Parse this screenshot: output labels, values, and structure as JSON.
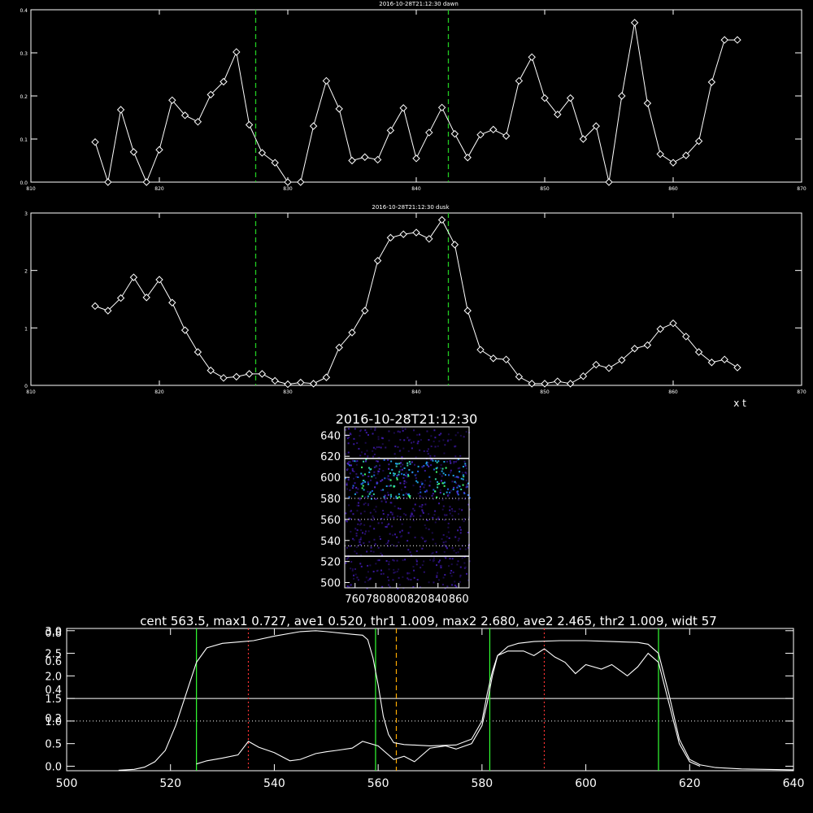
{
  "colors": {
    "background": "#000000",
    "foreground": "#ffffff",
    "marker_green": "#22cc22",
    "bright_green": "#33ff33",
    "red_dotted": "#ff3333",
    "orange_dashed": "#ffaa00"
  },
  "chart_data": [
    {
      "id": "dawn",
      "type": "line",
      "title": "2016-10-28T21:12:30 dawn",
      "xlim": [
        810,
        870
      ],
      "ylim": [
        0,
        0.4
      ],
      "xticks": [
        "810",
        "820",
        "830",
        "840",
        "850",
        "860",
        "870"
      ],
      "yticks": [
        "0.0",
        "0.1",
        "0.2",
        "0.3",
        "0.4"
      ],
      "marker": "diamond",
      "vlines_green_dashed": [
        827.5,
        842.5
      ],
      "x": [
        815,
        816,
        817,
        818,
        819,
        820,
        821,
        822,
        823,
        824,
        825,
        826,
        827,
        828,
        829,
        830,
        831,
        832,
        833,
        834,
        835,
        836,
        837,
        838,
        839,
        840,
        841,
        842,
        843,
        844,
        845,
        846,
        847,
        848,
        849,
        850,
        851,
        852,
        853,
        854,
        855,
        856,
        857,
        858,
        859,
        860,
        861,
        862,
        863,
        864,
        865
      ],
      "y": [
        0.093,
        0.0,
        0.168,
        0.07,
        0.0,
        0.075,
        0.19,
        0.155,
        0.14,
        0.203,
        0.233,
        0.302,
        0.133,
        0.068,
        0.045,
        0.0,
        -0.01,
        0.13,
        0.235,
        0.17,
        0.05,
        0.058,
        0.052,
        0.12,
        0.172,
        0.055,
        0.115,
        0.173,
        0.112,
        0.057,
        0.11,
        0.122,
        0.107,
        0.235,
        0.29,
        0.195,
        0.157,
        0.195,
        0.1,
        0.13,
        0.0,
        0.2,
        0.37,
        0.183,
        0.065,
        0.045,
        0.062,
        0.095,
        0.232,
        0.33,
        0.33
      ]
    },
    {
      "id": "dusk",
      "type": "line",
      "title": "2016-10-28T21:12:30 dusk",
      "xlim": [
        810,
        870
      ],
      "ylim": [
        0,
        3
      ],
      "xticks": [
        "810",
        "820",
        "830",
        "840",
        "850",
        "860",
        "870"
      ],
      "yticks": [
        "0",
        "1",
        "2",
        "3"
      ],
      "xlabel_extra": "x t",
      "marker": "diamond",
      "vlines_green_dashed": [
        827.5,
        842.5
      ],
      "x": [
        815,
        816,
        817,
        818,
        819,
        820,
        821,
        822,
        823,
        824,
        825,
        826,
        827,
        828,
        829,
        830,
        831,
        832,
        833,
        834,
        835,
        836,
        837,
        838,
        839,
        840,
        841,
        842,
        843,
        844,
        845,
        846,
        847,
        848,
        849,
        850,
        851,
        852,
        853,
        854,
        855,
        856,
        857,
        858,
        859,
        860,
        861,
        862,
        863,
        864,
        865
      ],
      "y": [
        1.38,
        1.3,
        1.52,
        1.88,
        1.53,
        1.84,
        1.44,
        0.96,
        0.58,
        0.26,
        0.13,
        0.15,
        0.2,
        0.2,
        0.08,
        0.02,
        0.05,
        0.03,
        0.14,
        0.66,
        0.92,
        1.3,
        2.17,
        2.57,
        2.63,
        2.66,
        2.55,
        2.88,
        2.45,
        1.3,
        0.62,
        0.47,
        0.45,
        0.15,
        0.03,
        0.03,
        0.07,
        0.03,
        0.16,
        0.36,
        0.3,
        0.44,
        0.64,
        0.7,
        0.98,
        1.08,
        0.85,
        0.58,
        0.4,
        0.45,
        0.31
      ]
    },
    {
      "id": "image",
      "type": "heatmap",
      "title": "2016-10-28T21:12:30",
      "xlim": [
        750,
        870
      ],
      "ylim": [
        495,
        648
      ],
      "xticks": [
        "760",
        "780",
        "800",
        "820",
        "840",
        "860"
      ],
      "yticks": [
        "500",
        "520",
        "540",
        "560",
        "580",
        "600",
        "620",
        "640"
      ],
      "hlines_solid": [
        618,
        525
      ],
      "hlines_dotted": [
        580,
        560,
        535
      ],
      "bright_column_centers": [
        768,
        775,
        795,
        800,
        812,
        838,
        845,
        862
      ]
    },
    {
      "id": "profile",
      "type": "line",
      "title": "cent 563.5, max1 0.727, ave1 0.520, thr1 1.009, max2 2.680, ave2 2.465, thr2 1.009, widt 57",
      "xlim": [
        500,
        640
      ],
      "xticks": [
        "500",
        "520",
        "540",
        "560",
        "580",
        "600",
        "620",
        "640"
      ],
      "ylim": [
        -0.1,
        3.05
      ],
      "yticks_left": [
        "0.0",
        "0.5",
        "1.0",
        "1.5",
        "2.0",
        "2.5",
        "3.0"
      ],
      "yticks_left_secondary": [
        "0.2",
        "0.4",
        "0.6",
        "0.8"
      ],
      "hline_solid": 1.5,
      "hline_dotted": 1.0,
      "vlines_green": [
        525,
        559.5,
        581.5,
        614
      ],
      "vlines_red_dotted": [
        535,
        592
      ],
      "vline_orange_dashed": 563.5,
      "series": [
        {
          "x": [
            510,
            513,
            515,
            517,
            519,
            521,
            523,
            525,
            527,
            530,
            533,
            536,
            540,
            545,
            548,
            550,
            555,
            557,
            558,
            559,
            560,
            561,
            562,
            563,
            565,
            570,
            575,
            578,
            580,
            581,
            582,
            583,
            585,
            587,
            590,
            595,
            600,
            605,
            610,
            612,
            614,
            616,
            618,
            620,
            622,
            625,
            630,
            640
          ],
          "y": [
            -0.09,
            -0.07,
            -0.02,
            0.1,
            0.35,
            0.9,
            1.6,
            2.3,
            2.62,
            2.72,
            2.75,
            2.78,
            2.88,
            2.98,
            3.0,
            2.98,
            2.92,
            2.9,
            2.8,
            2.4,
            1.8,
            1.1,
            0.7,
            0.52,
            0.48,
            0.45,
            0.47,
            0.6,
            1.0,
            1.6,
            2.1,
            2.45,
            2.65,
            2.72,
            2.76,
            2.78,
            2.78,
            2.76,
            2.74,
            2.7,
            2.5,
            1.6,
            0.6,
            0.15,
            0.03,
            -0.03,
            -0.06,
            -0.08
          ]
        },
        {
          "x": [
            525,
            527,
            530,
            533,
            534,
            535,
            537,
            540,
            543,
            545,
            548,
            550,
            552,
            555,
            557,
            560,
            563,
            565,
            567,
            570,
            573,
            575,
            578,
            580,
            581,
            582,
            583,
            585,
            588,
            590,
            592,
            594,
            596,
            598,
            600,
            603,
            605,
            608,
            610,
            612,
            614,
            616,
            618,
            620,
            622
          ],
          "y": [
            0.05,
            0.12,
            0.18,
            0.25,
            0.4,
            0.55,
            0.42,
            0.3,
            0.12,
            0.15,
            0.28,
            0.32,
            0.35,
            0.4,
            0.55,
            0.45,
            0.15,
            0.22,
            0.1,
            0.4,
            0.45,
            0.38,
            0.5,
            0.9,
            1.4,
            2.0,
            2.45,
            2.55,
            2.55,
            2.45,
            2.6,
            2.42,
            2.3,
            2.05,
            2.25,
            2.15,
            2.25,
            2.0,
            2.2,
            2.5,
            2.3,
            1.4,
            0.5,
            0.1,
            0.0
          ]
        }
      ]
    }
  ]
}
